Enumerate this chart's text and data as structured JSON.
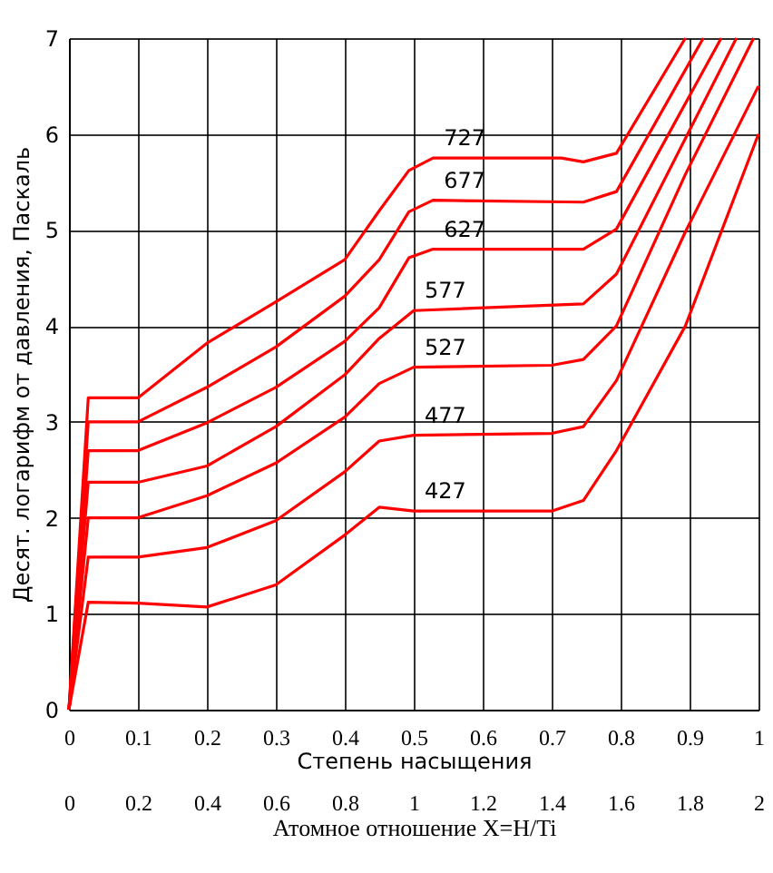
{
  "chart_data": {
    "type": "line",
    "xlabel": "Степень насыщения",
    "ylabel": "Десят. логарифм от давления, Паскаль",
    "x2label": "Атомное отношение X=H/Ti",
    "xlim": [
      0,
      1
    ],
    "xticks": [
      0,
      0.1,
      0.2,
      0.3,
      0.4,
      0.5,
      0.6,
      0.7,
      0.8,
      0.9,
      1
    ],
    "x2lim": [
      0,
      2
    ],
    "x2ticks": [
      0,
      0.2,
      0.4,
      0.6,
      0.8,
      1,
      1.2,
      1.4,
      1.6,
      1.8,
      2
    ],
    "ylim": [
      0,
      7
    ],
    "yticks": [
      0,
      1,
      2,
      3,
      4,
      5,
      6,
      7
    ],
    "grid": true,
    "legend": false,
    "marker": "none",
    "line_style": "solid",
    "series": [
      {
        "name": "427",
        "color": "#ff0000",
        "x": [
          0,
          0.028,
          0.1,
          0.2,
          0.3,
          0.4,
          0.45,
          0.5,
          0.7,
          0.746,
          0.794,
          0.894,
          1.0
        ],
        "values": [
          0,
          1.12,
          1.11,
          1.07,
          1.3,
          1.82,
          2.11,
          2.07,
          2.07,
          2.18,
          2.7,
          4.0,
          6.0
        ]
      },
      {
        "name": "477",
        "color": "#ff0000",
        "x": [
          0,
          0.028,
          0.1,
          0.2,
          0.3,
          0.4,
          0.45,
          0.5,
          0.7,
          0.746,
          0.794,
          0.894,
          1.0
        ],
        "values": [
          0,
          1.59,
          1.59,
          1.69,
          1.97,
          2.48,
          2.8,
          2.86,
          2.88,
          2.95,
          3.43,
          4.98,
          6.5
        ]
      },
      {
        "name": "527",
        "color": "#ff0000",
        "x": [
          0,
          0.028,
          0.1,
          0.2,
          0.3,
          0.4,
          0.45,
          0.5,
          0.7,
          0.746,
          0.794,
          0.894,
          0.993
        ],
        "values": [
          0,
          2.0,
          2.0,
          2.23,
          2.57,
          3.05,
          3.4,
          3.57,
          3.59,
          3.65,
          4.0,
          5.58,
          7.0
        ]
      },
      {
        "name": "577",
        "color": "#ff0000",
        "x": [
          0,
          0.028,
          0.1,
          0.2,
          0.3,
          0.4,
          0.45,
          0.5,
          0.746,
          0.794,
          0.968
        ],
        "values": [
          0,
          2.37,
          2.37,
          2.54,
          2.95,
          3.49,
          3.87,
          4.16,
          4.23,
          4.54,
          7.0
        ]
      },
      {
        "name": "627",
        "color": "#ff0000",
        "x": [
          0,
          0.028,
          0.1,
          0.2,
          0.3,
          0.4,
          0.45,
          0.493,
          0.528,
          0.746,
          0.794,
          0.946
        ],
        "values": [
          0,
          2.7,
          2.7,
          2.99,
          3.36,
          3.84,
          4.19,
          4.71,
          4.8,
          4.8,
          5.01,
          7.0
        ]
      },
      {
        "name": "677",
        "color": "#ff0000",
        "x": [
          0,
          0.028,
          0.1,
          0.2,
          0.3,
          0.4,
          0.45,
          0.493,
          0.528,
          0.746,
          0.794,
          0.92
        ],
        "values": [
          0,
          3.0,
          3.0,
          3.36,
          3.78,
          4.31,
          4.69,
          5.19,
          5.31,
          5.29,
          5.4,
          7.0
        ]
      },
      {
        "name": "727",
        "color": "#ff0000",
        "x": [
          0,
          0.028,
          0.1,
          0.2,
          0.3,
          0.4,
          0.45,
          0.493,
          0.528,
          0.714,
          0.746,
          0.794,
          0.894
        ],
        "values": [
          0,
          3.25,
          3.25,
          3.82,
          4.25,
          4.69,
          5.2,
          5.62,
          5.75,
          5.75,
          5.71,
          5.8,
          7.0
        ]
      }
    ]
  }
}
